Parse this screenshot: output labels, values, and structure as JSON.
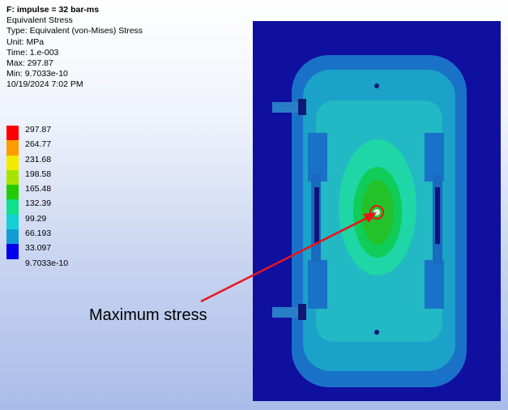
{
  "info": {
    "title": "F: impulse = 32 bar-ms",
    "result_name": "Equivalent Stress",
    "type": "Type: Equivalent (von-Mises) Stress",
    "unit": "Unit: MPa",
    "time": "Time: 1.e-003",
    "max": "Max: 297.87",
    "min": "Min: 9.7033e-10",
    "timestamp": "10/19/2024 7:02 PM"
  },
  "legend": {
    "levels": [
      {
        "label": "297.87",
        "color": "#ff0000"
      },
      {
        "label": "264.77",
        "color": "#ff9c00"
      },
      {
        "label": "231.68",
        "color": "#f4ea00"
      },
      {
        "label": "198.58",
        "color": "#a6e400"
      },
      {
        "label": "165.48",
        "color": "#22cc00"
      },
      {
        "label": "132.39",
        "color": "#0fe08c"
      },
      {
        "label": "99.29",
        "color": "#14d0d6"
      },
      {
        "label": "66.193",
        "color": "#119cd2"
      },
      {
        "label": "33.097",
        "color": "#0000ee"
      }
    ],
    "bottom_label": "9.7033e-10"
  },
  "annotation": {
    "text": "Maximum stress",
    "color": "#e8141c"
  }
}
